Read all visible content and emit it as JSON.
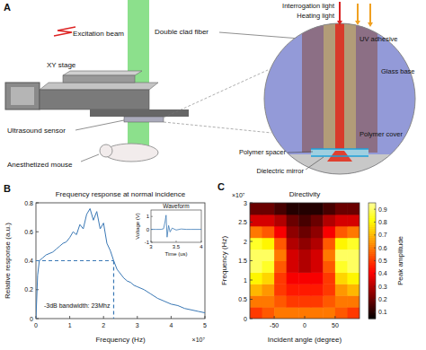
{
  "diagram": {
    "panel_label": "A",
    "labels": {
      "excitation_beam": "Excitation beam",
      "xy_stage": "XY stage",
      "ultrasound_sensor": "Ultrasound sensor",
      "mouse": "Anesthetized mouse",
      "fiber": "Double clad fiber",
      "interrogation": "Interrogation light",
      "heating": "Heating light",
      "adhesive": "UV adhesive",
      "glass": "Glass base",
      "cover": "Polymer cover",
      "spacer": "Polymer spacer",
      "mirror": "Dielectric mirror"
    }
  },
  "chart_data": [
    {
      "panel_label": "B",
      "type": "line",
      "title": "Frequency response at normal incidence",
      "x_label": "Frequency (Hz)",
      "y_label": "Relative response (a.u.)",
      "x_exponent": "×10⁷",
      "color": "#3a78b5",
      "x": [
        0,
        0.05,
        0.1,
        0.2,
        0.3,
        0.4,
        0.5,
        0.6,
        0.7,
        0.8,
        0.9,
        1.0,
        1.1,
        1.2,
        1.3,
        1.4,
        1.5,
        1.6,
        1.7,
        1.8,
        1.9,
        2.0,
        2.1,
        2.2,
        2.3,
        2.4,
        2.5,
        2.6,
        2.7,
        2.8,
        2.9,
        3.0,
        3.2,
        3.4,
        3.6,
        3.8,
        4.0,
        4.2,
        4.4,
        4.6,
        4.8,
        5.0
      ],
      "values": [
        0,
        0.3,
        0.4,
        0.42,
        0.44,
        0.45,
        0.46,
        0.48,
        0.5,
        0.52,
        0.53,
        0.56,
        0.6,
        0.58,
        0.65,
        0.62,
        0.72,
        0.76,
        0.68,
        0.74,
        0.62,
        0.66,
        0.52,
        0.47,
        0.4,
        0.34,
        0.31,
        0.28,
        0.26,
        0.25,
        0.23,
        0.22,
        0.2,
        0.17,
        0.14,
        0.12,
        0.1,
        0.09,
        0.07,
        0.06,
        0.05,
        0.04
      ],
      "xlim": [
        0,
        5
      ],
      "ylim": [
        0,
        0.8
      ],
      "xticks": [
        0,
        1,
        2,
        3,
        4,
        5
      ],
      "yticks": [
        0,
        0.2,
        0.4,
        0.6,
        0.8
      ],
      "annotations": [
        {
          "text": "-3dB bandwidth: 23Mhz",
          "x": 2.3,
          "y": 0.4
        }
      ],
      "inset": {
        "type": "line",
        "title": "Waveform",
        "x_label": "Time (us)",
        "y_label": "Voltage (V)",
        "color": "#3a78b5",
        "x": [
          3.0,
          3.1,
          3.2,
          3.25,
          3.28,
          3.3,
          3.32,
          3.35,
          3.38,
          3.42,
          3.5,
          3.6,
          3.7,
          3.8,
          4.0
        ],
        "values": [
          0,
          0,
          0,
          0.05,
          0.6,
          1.1,
          -0.6,
          0.3,
          -0.2,
          0.1,
          -0.05,
          0.03,
          0,
          0,
          0
        ],
        "xlim": [
          3,
          4
        ],
        "ylim": [
          -1,
          1.5
        ],
        "xticks": [
          3,
          3.5,
          4
        ],
        "yticks": [
          -1,
          0,
          1
        ]
      }
    },
    {
      "panel_label": "C",
      "type": "heatmap",
      "title": "Directivity",
      "x_label": "Incident angle (degree)",
      "y_label": "Frequency (Hz)",
      "y_exponent": "×10⁷",
      "x": [
        -80,
        -60,
        -40,
        -20,
        0,
        20,
        40,
        60,
        80
      ],
      "y": [
        0.15,
        0.45,
        0.75,
        1.05,
        1.35,
        1.65,
        1.95,
        2.25,
        2.55,
        2.85
      ],
      "cells": [
        [
          0.5,
          0.55,
          0.6,
          0.6,
          0.6,
          0.6,
          0.6,
          0.55,
          0.5
        ],
        [
          0.6,
          0.6,
          0.55,
          0.5,
          0.5,
          0.5,
          0.55,
          0.6,
          0.6
        ],
        [
          0.7,
          0.65,
          0.5,
          0.45,
          0.45,
          0.45,
          0.5,
          0.65,
          0.7
        ],
        [
          0.8,
          0.75,
          0.5,
          0.4,
          0.4,
          0.4,
          0.5,
          0.75,
          0.8
        ],
        [
          0.9,
          0.85,
          0.55,
          0.35,
          0.3,
          0.35,
          0.55,
          0.85,
          0.9
        ],
        [
          0.9,
          0.9,
          0.6,
          0.35,
          0.3,
          0.35,
          0.6,
          0.9,
          0.9
        ],
        [
          0.85,
          0.8,
          0.55,
          0.3,
          0.25,
          0.3,
          0.55,
          0.8,
          0.85
        ],
        [
          0.6,
          0.55,
          0.4,
          0.25,
          0.2,
          0.25,
          0.4,
          0.55,
          0.6
        ],
        [
          0.35,
          0.35,
          0.3,
          0.2,
          0.15,
          0.2,
          0.3,
          0.35,
          0.35
        ],
        [
          0.2,
          0.2,
          0.15,
          0.1,
          0.1,
          0.1,
          0.15,
          0.2,
          0.2
        ]
      ],
      "xlim": [
        -90,
        90
      ],
      "ylim": [
        0,
        3
      ],
      "xticks": [
        -50,
        0,
        50
      ],
      "yticks": [
        0,
        0.5,
        1,
        1.5,
        2,
        2.5,
        3
      ],
      "colorbar": {
        "label": "Peak amplitude",
        "range": [
          0.05,
          0.95
        ],
        "ticks": [
          0.1,
          0.2,
          0.3,
          0.4,
          0.5,
          0.6,
          0.7,
          0.8,
          0.9
        ]
      }
    }
  ]
}
